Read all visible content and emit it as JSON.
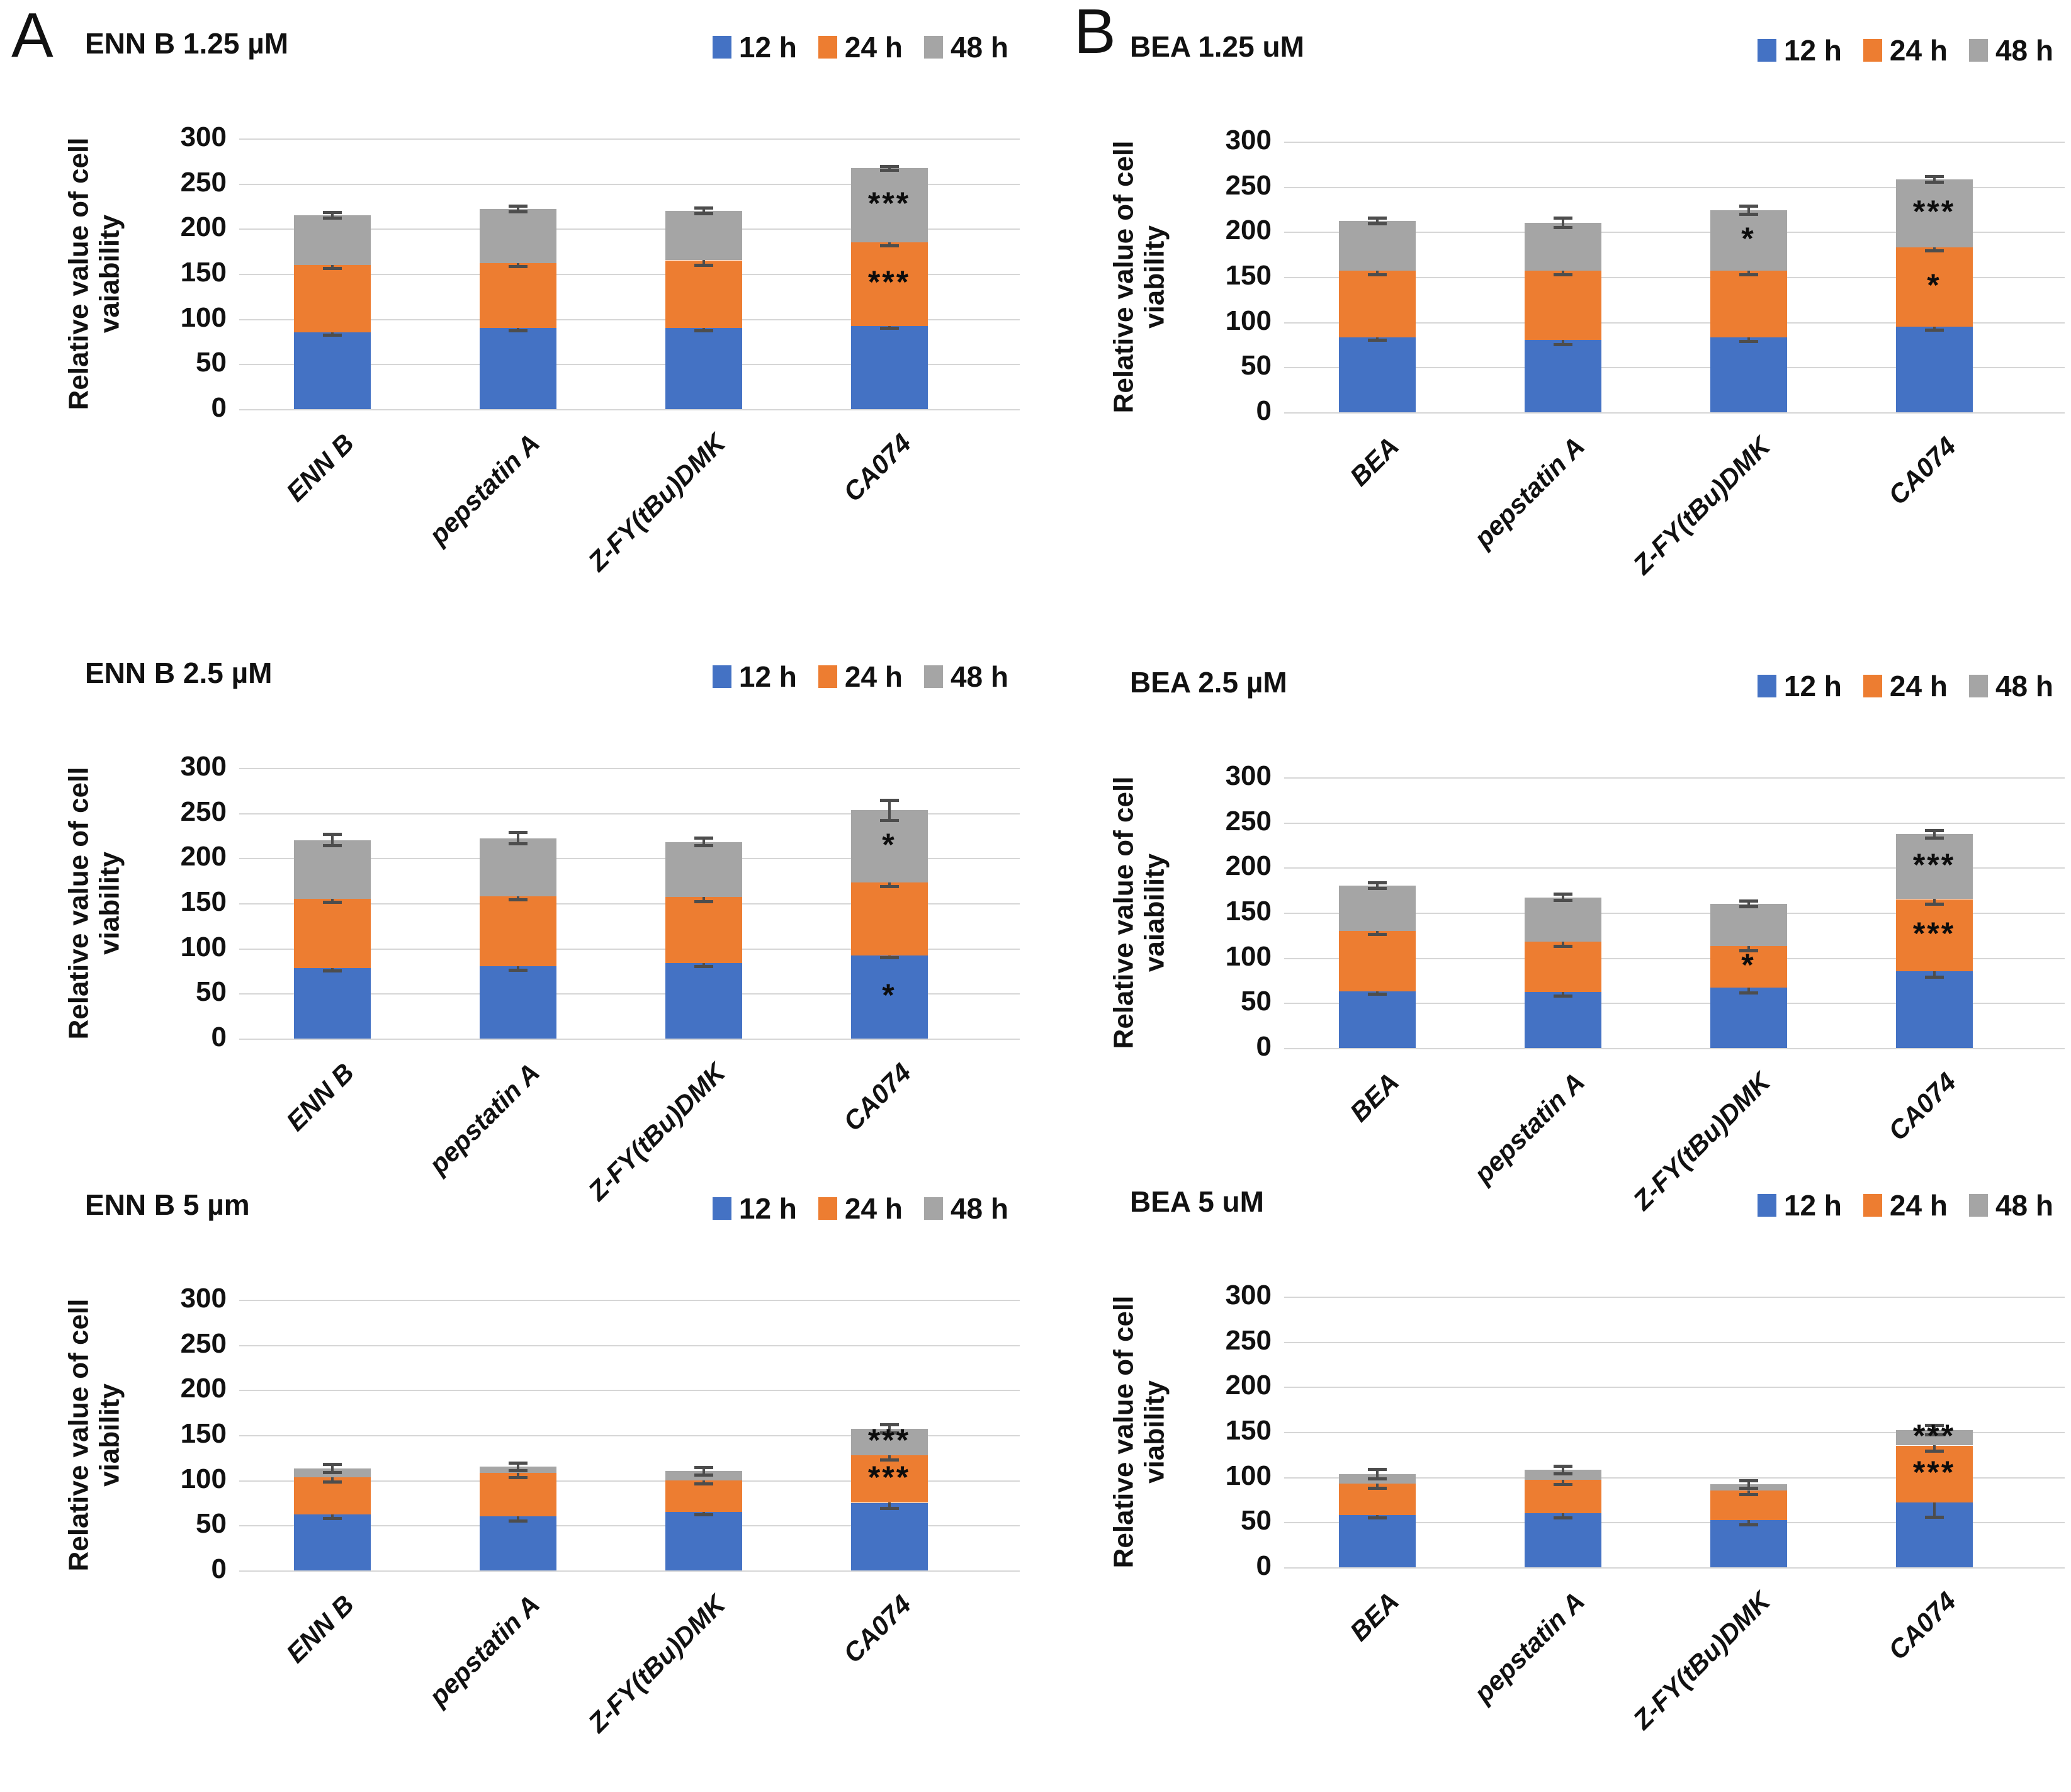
{
  "figure": {
    "panel_a_label": "A",
    "panel_b_label": "B",
    "series_colors": [
      "#4472C4",
      "#ED7D31",
      "#A5A5A5"
    ],
    "grid_color": "#d6d6d6",
    "error_bar_color": "#4d4d4d",
    "legend": {
      "items": [
        {
          "label": "12 h"
        },
        {
          "label": "24 h"
        },
        {
          "label": "48 h"
        }
      ]
    }
  },
  "chart_data": [
    {
      "type": "bar",
      "stacked": true,
      "panel": "A",
      "title": "ENN B 1.25 µM",
      "ylabel_line1": "Relative value of cell",
      "ylabel_line2": "vaiability",
      "ylim": [
        0,
        300
      ],
      "yticks": [
        0,
        50,
        100,
        150,
        200,
        250,
        300
      ],
      "grid": true,
      "legend": [
        "12 h",
        "24 h",
        "48 h"
      ],
      "legend_position": "top-right",
      "categories": [
        "ENN B",
        "pepstatin A",
        "Z-FY(tBu)DMK",
        "CA074"
      ],
      "series": [
        {
          "name": "12 h",
          "values": [
            85,
            90,
            90,
            92
          ]
        },
        {
          "name": "24 h",
          "values": [
            75,
            72,
            75,
            93
          ]
        },
        {
          "name": "48 h",
          "values": [
            55,
            60,
            55,
            82
          ]
        }
      ],
      "errors": [
        [
          5,
          5,
          5,
          4
        ],
        [
          6,
          6,
          7,
          6
        ],
        [
          5,
          5,
          5,
          4
        ]
      ],
      "sig": [
        {
          "cat": 3,
          "seg": 1,
          "label": "***"
        },
        {
          "cat": 3,
          "seg": 2,
          "label": "***"
        }
      ]
    },
    {
      "type": "bar",
      "stacked": true,
      "panel": "A",
      "title": "ENN B 2.5 µM",
      "ylabel_line1": "Relative value of cell",
      "ylabel_line2": "viability",
      "ylim": [
        0,
        300
      ],
      "yticks": [
        0,
        50,
        100,
        150,
        200,
        250,
        300
      ],
      "grid": true,
      "legend": [
        "12 h",
        "24 h",
        "48 h"
      ],
      "legend_position": "top-right",
      "categories": [
        "ENN B",
        "pepstatin A",
        "Z-FY(tBu)DMK",
        "CA074"
      ],
      "series": [
        {
          "name": "12 h",
          "values": [
            78,
            80,
            84,
            92
          ]
        },
        {
          "name": "24 h",
          "values": [
            77,
            78,
            73,
            81
          ]
        },
        {
          "name": "48 h",
          "values": [
            65,
            64,
            61,
            80
          ]
        }
      ],
      "errors": [
        [
          5,
          6,
          6,
          4
        ],
        [
          6,
          6,
          7,
          6
        ],
        [
          8,
          8,
          6,
          13
        ]
      ],
      "sig": [
        {
          "cat": 3,
          "seg": 0,
          "label": "*"
        },
        {
          "cat": 3,
          "seg": 2,
          "label": "*"
        }
      ]
    },
    {
      "type": "bar",
      "stacked": true,
      "panel": "A",
      "title": "ENN B 5 µm",
      "ylabel_line1": "Relative value of cell",
      "ylabel_line2": "viability",
      "ylim": [
        0,
        300
      ],
      "yticks": [
        0,
        50,
        100,
        150,
        200,
        250,
        300
      ],
      "grid": true,
      "legend": [
        "12 h",
        "24 h",
        "48 h"
      ],
      "legend_position": "top-right",
      "categories": [
        "ENN B",
        "pepstatin A",
        "Z-FY(tBu)DMK",
        "CA074"
      ],
      "series": [
        {
          "name": "12 h",
          "values": [
            62,
            60,
            65,
            75
          ]
        },
        {
          "name": "24 h",
          "values": [
            41,
            48,
            35,
            53
          ]
        },
        {
          "name": "48 h",
          "values": [
            10,
            7,
            10,
            29
          ]
        }
      ],
      "errors": [
        [
          6,
          7,
          5,
          8
        ],
        [
          7,
          7,
          6,
          7
        ],
        [
          6,
          6,
          6,
          6
        ]
      ],
      "sig": [
        {
          "cat": 3,
          "seg": 1,
          "label": "***"
        },
        {
          "cat": 3,
          "seg": 2,
          "label": "***"
        }
      ]
    },
    {
      "type": "bar",
      "stacked": true,
      "panel": "B",
      "title": "BEA 1.25 uM",
      "ylabel_line1": "Relative value of cell",
      "ylabel_line2": "viability",
      "ylim": [
        0,
        300
      ],
      "yticks": [
        0,
        50,
        100,
        150,
        200,
        250,
        300
      ],
      "grid": true,
      "legend": [
        "12 h",
        "24 h",
        "48 h"
      ],
      "legend_position": "top-right",
      "categories": [
        "BEA",
        "pepstatin A",
        "Z-FY(tBu)DMK",
        "CA074"
      ],
      "series": [
        {
          "name": "12 h",
          "values": [
            83,
            80,
            83,
            95
          ]
        },
        {
          "name": "24 h",
          "values": [
            74,
            77,
            74,
            88
          ]
        },
        {
          "name": "48 h",
          "values": [
            55,
            53,
            67,
            75
          ]
        }
      ],
      "errors": [
        [
          5,
          7,
          6,
          6
        ],
        [
          6,
          6,
          6,
          6
        ],
        [
          5,
          7,
          6,
          5
        ]
      ],
      "sig": [
        {
          "cat": 2,
          "seg": 2,
          "label": "*"
        },
        {
          "cat": 3,
          "seg": 1,
          "label": "*"
        },
        {
          "cat": 3,
          "seg": 2,
          "label": "***"
        }
      ]
    },
    {
      "type": "bar",
      "stacked": true,
      "panel": "B",
      "title": "BEA 2.5 µM",
      "ylabel_line1": "Relative value of cell",
      "ylabel_line2": "vaiability",
      "ylim": [
        0,
        300
      ],
      "yticks": [
        0,
        50,
        100,
        150,
        200,
        250,
        300
      ],
      "grid": true,
      "legend": [
        "12 h",
        "24 h",
        "48 h"
      ],
      "legend_position": "top-right",
      "categories": [
        "BEA",
        "pepstatin A",
        "Z-FY(tBu)DMK",
        "CA074"
      ],
      "series": [
        {
          "name": "12 h",
          "values": [
            63,
            62,
            67,
            85
          ]
        },
        {
          "name": "24 h",
          "values": [
            67,
            56,
            46,
            80
          ]
        },
        {
          "name": "48 h",
          "values": [
            50,
            49,
            47,
            72
          ]
        }
      ],
      "errors": [
        [
          5,
          6,
          8,
          8
        ],
        [
          6,
          7,
          7,
          7
        ],
        [
          5,
          5,
          5,
          6
        ]
      ],
      "sig": [
        {
          "cat": 2,
          "seg": 1,
          "label": "*"
        },
        {
          "cat": 3,
          "seg": 1,
          "label": "***"
        },
        {
          "cat": 3,
          "seg": 2,
          "label": "***"
        }
      ]
    },
    {
      "type": "bar",
      "stacked": true,
      "panel": "B",
      "title": "BEA 5 uM",
      "ylabel_line1": "Relative value of cell",
      "ylabel_line2": "viability",
      "ylim": [
        0,
        300
      ],
      "yticks": [
        0,
        50,
        100,
        150,
        200,
        250,
        300
      ],
      "grid": true,
      "legend": [
        "12 h",
        "24 h",
        "48 h"
      ],
      "legend_position": "top-right",
      "categories": [
        "BEA",
        "pepstatin A",
        "Z-FY(tBu)DMK",
        "CA074"
      ],
      "series": [
        {
          "name": "12 h",
          "values": [
            58,
            60,
            52,
            72
          ]
        },
        {
          "name": "24 h",
          "values": [
            35,
            37,
            33,
            63
          ]
        },
        {
          "name": "48 h",
          "values": [
            10,
            11,
            7,
            17
          ]
        }
      ],
      "errors": [
        [
          5,
          7,
          7,
          18
        ],
        [
          7,
          7,
          6,
          8
        ],
        [
          7,
          6,
          6,
          7
        ]
      ],
      "sig": [
        {
          "cat": 3,
          "seg": 1,
          "label": "***"
        },
        {
          "cat": 3,
          "seg": 2,
          "label": "***"
        }
      ]
    }
  ]
}
